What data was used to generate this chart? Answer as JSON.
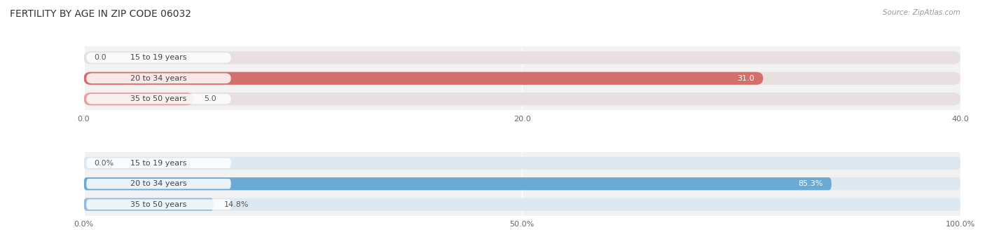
{
  "title": "FERTILITY BY AGE IN ZIP CODE 06032",
  "source": "Source: ZipAtlas.com",
  "top_chart": {
    "categories": [
      "15 to 19 years",
      "20 to 34 years",
      "35 to 50 years"
    ],
    "values": [
      0.0,
      31.0,
      5.0
    ],
    "xlim": [
      0,
      40
    ],
    "xticks": [
      0.0,
      20.0,
      40.0
    ],
    "xtick_labels": [
      "0.0",
      "20.0",
      "40.0"
    ],
    "bar_colors": [
      "#e8a0a0",
      "#d4706a",
      "#e8a0a0"
    ],
    "bar_bg_color": "#e8e0e0"
  },
  "bottom_chart": {
    "categories": [
      "15 to 19 years",
      "20 to 34 years",
      "35 to 50 years"
    ],
    "values": [
      0.0,
      85.3,
      14.8
    ],
    "xlim": [
      0,
      100
    ],
    "xticks": [
      0.0,
      50.0,
      100.0
    ],
    "xtick_labels": [
      "0.0%",
      "50.0%",
      "100.0%"
    ],
    "bar_colors": [
      "#90bede",
      "#6aaad4",
      "#90bede"
    ],
    "bar_bg_color": "#dde8f0"
  },
  "fig_bg": "#ffffff",
  "panel_bg": "#f2f2f2",
  "title_fontsize": 10,
  "label_fontsize": 8,
  "tick_fontsize": 8,
  "source_fontsize": 7.5,
  "value_label_color": "#555555",
  "value_label_inside_color": "#ffffff"
}
